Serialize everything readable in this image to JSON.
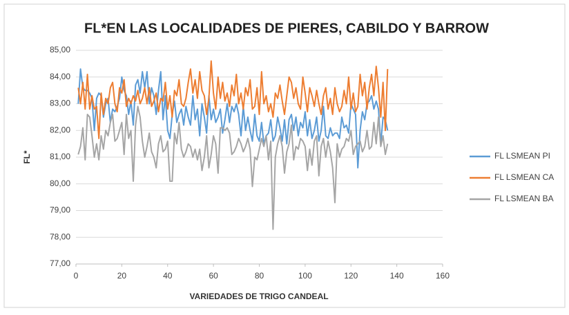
{
  "chart_data": {
    "type": "line",
    "title": "FL*EN LAS LOCALIDADES DE PIERES, CABILDO Y BARROW",
    "x_label": "VARIEDADES DE TRIGO CANDEAL",
    "y_label": "FL*",
    "x": [
      1,
      2,
      3,
      4,
      5,
      6,
      7,
      8,
      9,
      10,
      11,
      12,
      13,
      14,
      15,
      16,
      17,
      18,
      19,
      20,
      21,
      22,
      23,
      24,
      25,
      26,
      27,
      28,
      29,
      30,
      31,
      32,
      33,
      34,
      35,
      36,
      37,
      38,
      39,
      40,
      41,
      42,
      43,
      44,
      45,
      46,
      47,
      48,
      49,
      50,
      51,
      52,
      53,
      54,
      55,
      56,
      57,
      58,
      59,
      60,
      61,
      62,
      63,
      64,
      65,
      66,
      67,
      68,
      69,
      70,
      71,
      72,
      73,
      74,
      75,
      76,
      77,
      78,
      79,
      80,
      81,
      82,
      83,
      84,
      85,
      86,
      87,
      88,
      89,
      90,
      91,
      92,
      93,
      94,
      95,
      96,
      97,
      98,
      99,
      100,
      101,
      102,
      103,
      104,
      105,
      106,
      107,
      108,
      109,
      110,
      111,
      112,
      113,
      114,
      115,
      116,
      117,
      118,
      119,
      120,
      121,
      122,
      123,
      124,
      125,
      126,
      127,
      128,
      129,
      130,
      131,
      132,
      133,
      134,
      135,
      136
    ],
    "series": [
      {
        "name": "FL LSMEAN PI",
        "color": "#5b9bd5",
        "values": [
          83.0,
          84.3,
          83.6,
          83.5,
          83.5,
          83.4,
          83.2,
          82.0,
          83.2,
          83.4,
          83.3,
          82.5,
          83.0,
          83.2,
          82.3,
          82.8,
          82.7,
          82.9,
          83.2,
          84.0,
          83.5,
          83.3,
          82.6,
          83.1,
          82.2,
          83.7,
          83.9,
          83.4,
          84.2,
          83.6,
          84.2,
          83.0,
          83.6,
          83.3,
          82.6,
          83.5,
          84.2,
          82.4,
          83.3,
          82.0,
          81.7,
          82.6,
          83.1,
          82.3,
          82.6,
          82.8,
          82.2,
          82.9,
          82.5,
          82.2,
          83.3,
          82.4,
          82.8,
          81.8,
          83.0,
          82.5,
          81.9,
          83.3,
          82.4,
          82.8,
          82.3,
          82.5,
          82.8,
          81.9,
          82.4,
          83.0,
          82.3,
          82.9,
          82.7,
          83.0,
          82.6,
          81.8,
          82.9,
          82.0,
          82.5,
          82.0,
          81.6,
          82.6,
          81.8,
          81.6,
          82.3,
          81.5,
          81.8,
          81.9,
          82.4,
          81.6,
          81.8,
          82.5,
          82.1,
          81.6,
          82.4,
          81.5,
          82.4,
          82.6,
          82.0,
          82.5,
          81.8,
          82.3,
          82.1,
          82.7,
          81.8,
          82.4,
          81.7,
          82.0,
          82.5,
          81.6,
          82.0,
          82.9,
          81.8,
          81.7,
          82.1,
          81.8,
          81.9,
          81.9,
          81.7,
          82.5,
          82.1,
          82.2,
          81.9,
          83.0,
          82.8,
          82.6,
          80.6,
          82.0,
          82.7,
          82.4,
          83.0,
          83.1,
          83.3,
          82.8,
          83.1,
          82.8,
          81.5,
          82.5,
          82.4,
          82.0
        ]
      },
      {
        "name": "FL LSMEAN CA",
        "color": "#ed7d31",
        "values": [
          83.6,
          83.0,
          83.8,
          82.8,
          84.1,
          82.8,
          83.3,
          82.8,
          82.9,
          81.7,
          83.4,
          82.6,
          83.2,
          83.0,
          83.6,
          83.8,
          83.0,
          82.7,
          83.6,
          83.4,
          83.9,
          82.9,
          83.2,
          83.0,
          83.3,
          83.1,
          83.5,
          83.0,
          83.2,
          83.6,
          83.0,
          83.6,
          82.9,
          83.1,
          83.4,
          82.7,
          83.2,
          83.1,
          83.8,
          82.8,
          83.3,
          82.5,
          83.5,
          83.3,
          83.9,
          83.0,
          82.9,
          83.2,
          83.8,
          84.3,
          83.4,
          83.9,
          83.2,
          84.2,
          83.5,
          83.3,
          82.6,
          83.2,
          84.6,
          83.4,
          82.8,
          84.0,
          83.2,
          83.8,
          83.1,
          83.4,
          82.9,
          83.7,
          83.3,
          84.1,
          83.0,
          83.4,
          82.8,
          83.6,
          83.3,
          83.9,
          82.8,
          82.9,
          83.6,
          82.6,
          84.2,
          83.0,
          83.3,
          82.7,
          83.0,
          82.5,
          83.4,
          83.2,
          83.7,
          83.1,
          82.6,
          83.3,
          84.0,
          83.8,
          83.2,
          83.6,
          83.0,
          82.8,
          84.0,
          83.4,
          82.7,
          83.6,
          83.3,
          82.9,
          83.5,
          83.0,
          82.6,
          83.3,
          83.6,
          82.8,
          83.2,
          82.6,
          83.6,
          83.0,
          82.7,
          82.9,
          83.5,
          83.0,
          84.0,
          82.8,
          83.4,
          82.7,
          82.9,
          84.1,
          83.3,
          83.8,
          82.8,
          83.6,
          84.1,
          83.3,
          84.4,
          83.6,
          82.5,
          83.8,
          82.0,
          84.3
        ]
      },
      {
        "name": "FL LSMEAN BA",
        "color": "#a5a5a5",
        "values": [
          81.1,
          81.4,
          82.1,
          80.9,
          82.6,
          82.5,
          81.8,
          81.0,
          81.5,
          80.9,
          81.8,
          81.3,
          82.0,
          81.8,
          82.3,
          82.6,
          81.6,
          81.7,
          82.0,
          82.3,
          81.1,
          82.6,
          81.7,
          82.0,
          80.1,
          82.2,
          82.9,
          82.5,
          81.6,
          81.0,
          81.4,
          81.9,
          81.2,
          81.0,
          80.6,
          81.5,
          81.8,
          81.2,
          81.3,
          81.6,
          80.1,
          80.1,
          81.9,
          81.5,
          82.3,
          81.3,
          81.0,
          81.2,
          81.5,
          81.4,
          81.0,
          81.3,
          80.9,
          81.3,
          80.5,
          81.0,
          81.8,
          80.6,
          81.1,
          81.8,
          81.5,
          80.4,
          82.1,
          82.1,
          82.0,
          82.1,
          81.9,
          81.1,
          81.2,
          81.4,
          81.7,
          81.5,
          81.2,
          81.4,
          81.7,
          81.3,
          79.9,
          81.0,
          80.9,
          81.3,
          81.7,
          81.4,
          81.8,
          80.9,
          81.6,
          78.3,
          81.0,
          81.5,
          81.8,
          81.4,
          80.4,
          81.2,
          81.5,
          82.2,
          80.9,
          81.4,
          81.3,
          81.7,
          81.6,
          81.4,
          80.5,
          81.3,
          80.7,
          81.6,
          81.8,
          80.3,
          81.4,
          81.7,
          81.0,
          81.6,
          81.2,
          80.6,
          79.3,
          81.5,
          81.0,
          81.3,
          81.4,
          81.7,
          81.6,
          82.0,
          81.1,
          81.4,
          81.5,
          81.6,
          81.2,
          81.4,
          82.0,
          81.3,
          81.4,
          82.3,
          81.5,
          82.5,
          81.4,
          81.8,
          81.1,
          81.5
        ]
      }
    ],
    "xlim": [
      0,
      160
    ],
    "xticks": [
      0,
      20,
      40,
      60,
      80,
      100,
      120,
      140,
      160
    ],
    "ylim": [
      77,
      85
    ],
    "yticks": [
      {
        "value": 77,
        "label": "77,00"
      },
      {
        "value": 78,
        "label": "78,00"
      },
      {
        "value": 79,
        "label": "79,00"
      },
      {
        "value": 80,
        "label": "80,00"
      },
      {
        "value": 81,
        "label": "81,00"
      },
      {
        "value": 82,
        "label": "82,00"
      },
      {
        "value": 83,
        "label": "83,00"
      },
      {
        "value": 84,
        "label": "84,00"
      },
      {
        "value": 85,
        "label": "85,00"
      }
    ],
    "grid": true,
    "legend": "right"
  }
}
